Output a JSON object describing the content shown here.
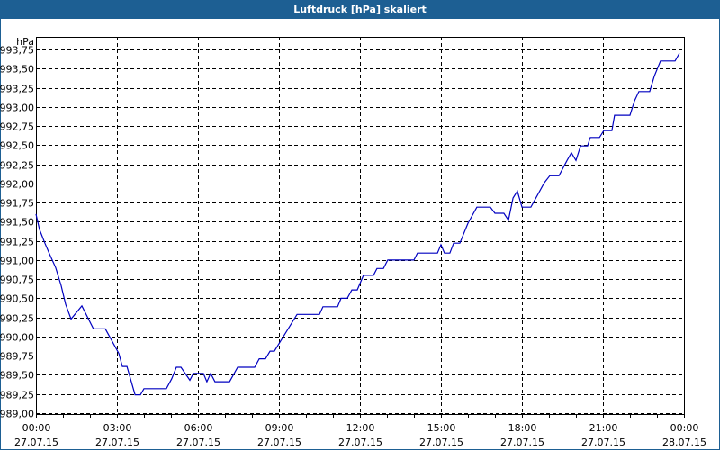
{
  "window": {
    "title": "Luftdruck [hPa] skaliert",
    "title_bar_color": "#1d5f93",
    "line_color": "#0000c0"
  },
  "chart_data": {
    "type": "line",
    "title": "Luftdruck [hPa] skaliert",
    "xlabel": "",
    "ylabel": "hPa",
    "ylim": [
      989.0,
      993.75
    ],
    "xlim_hours": [
      0,
      24
    ],
    "grid": true,
    "legend": null,
    "y_ticks": [
      "989,00",
      "989,25",
      "989,50",
      "989,75",
      "990,00",
      "990,25",
      "990,50",
      "990,75",
      "991,00",
      "991,25",
      "991,50",
      "991,75",
      "992,00",
      "992,25",
      "992,50",
      "992,75",
      "993,00",
      "993,25",
      "993,50",
      "993,75"
    ],
    "x_ticks": [
      {
        "time": "00:00",
        "date": "27.07.15"
      },
      {
        "time": "03:00",
        "date": "27.07.15"
      },
      {
        "time": "06:00",
        "date": "27.07.15"
      },
      {
        "time": "09:00",
        "date": "27.07.15"
      },
      {
        "time": "12:00",
        "date": "27.07.15"
      },
      {
        "time": "15:00",
        "date": "27.07.15"
      },
      {
        "time": "18:00",
        "date": "27.07.15"
      },
      {
        "time": "21:00",
        "date": "27.07.15"
      },
      {
        "time": "00:00",
        "date": "28.07.15"
      }
    ],
    "series": [
      {
        "name": "Luftdruck",
        "points_hour_hpa": [
          [
            0.0,
            991.6
          ],
          [
            0.13,
            991.4
          ],
          [
            0.33,
            991.22
          ],
          [
            0.5,
            991.08
          ],
          [
            0.73,
            990.9
          ],
          [
            0.93,
            990.67
          ],
          [
            1.1,
            990.42
          ],
          [
            1.3,
            990.23
          ],
          [
            1.7,
            990.4
          ],
          [
            2.13,
            990.1
          ],
          [
            2.57,
            990.1
          ],
          [
            3.07,
            989.78
          ],
          [
            3.2,
            989.61
          ],
          [
            3.37,
            989.61
          ],
          [
            3.67,
            989.24
          ],
          [
            3.87,
            989.24
          ],
          [
            4.0,
            989.32
          ],
          [
            4.83,
            989.32
          ],
          [
            5.03,
            989.45
          ],
          [
            5.2,
            989.6
          ],
          [
            5.37,
            989.6
          ],
          [
            5.7,
            989.43
          ],
          [
            5.83,
            989.52
          ],
          [
            6.2,
            989.52
          ],
          [
            6.33,
            989.41
          ],
          [
            6.47,
            989.52
          ],
          [
            6.63,
            989.41
          ],
          [
            7.17,
            989.41
          ],
          [
            7.47,
            989.6
          ],
          [
            8.1,
            989.6
          ],
          [
            8.27,
            989.71
          ],
          [
            8.5,
            989.71
          ],
          [
            8.67,
            989.81
          ],
          [
            8.83,
            989.81
          ],
          [
            9.67,
            990.29
          ],
          [
            10.5,
            990.29
          ],
          [
            10.63,
            990.39
          ],
          [
            11.17,
            990.39
          ],
          [
            11.3,
            990.5
          ],
          [
            11.53,
            990.5
          ],
          [
            11.7,
            990.61
          ],
          [
            11.9,
            990.61
          ],
          [
            12.13,
            990.8
          ],
          [
            12.5,
            990.8
          ],
          [
            12.63,
            990.89
          ],
          [
            12.87,
            990.89
          ],
          [
            13.03,
            991.0
          ],
          [
            14.0,
            991.0
          ],
          [
            14.13,
            991.09
          ],
          [
            14.87,
            991.09
          ],
          [
            15.0,
            991.2
          ],
          [
            15.13,
            991.09
          ],
          [
            15.33,
            991.09
          ],
          [
            15.47,
            991.22
          ],
          [
            15.7,
            991.22
          ],
          [
            16.0,
            991.48
          ],
          [
            16.33,
            991.69
          ],
          [
            16.83,
            991.69
          ],
          [
            17.0,
            991.61
          ],
          [
            17.33,
            991.61
          ],
          [
            17.5,
            991.52
          ],
          [
            17.67,
            991.81
          ],
          [
            17.83,
            991.9
          ],
          [
            18.0,
            991.69
          ],
          [
            18.33,
            991.69
          ],
          [
            18.83,
            992.01
          ],
          [
            19.03,
            992.1
          ],
          [
            19.37,
            992.1
          ],
          [
            19.67,
            992.3
          ],
          [
            19.83,
            992.4
          ],
          [
            20.0,
            992.3
          ],
          [
            20.17,
            992.49
          ],
          [
            20.43,
            992.49
          ],
          [
            20.53,
            992.6
          ],
          [
            20.87,
            992.6
          ],
          [
            21.03,
            992.69
          ],
          [
            21.33,
            992.69
          ],
          [
            21.43,
            992.89
          ],
          [
            22.0,
            992.89
          ],
          [
            22.17,
            993.08
          ],
          [
            22.33,
            993.2
          ],
          [
            22.73,
            993.2
          ],
          [
            22.9,
            993.4
          ],
          [
            23.13,
            993.6
          ],
          [
            23.67,
            993.6
          ],
          [
            23.83,
            993.7
          ]
        ]
      }
    ]
  }
}
